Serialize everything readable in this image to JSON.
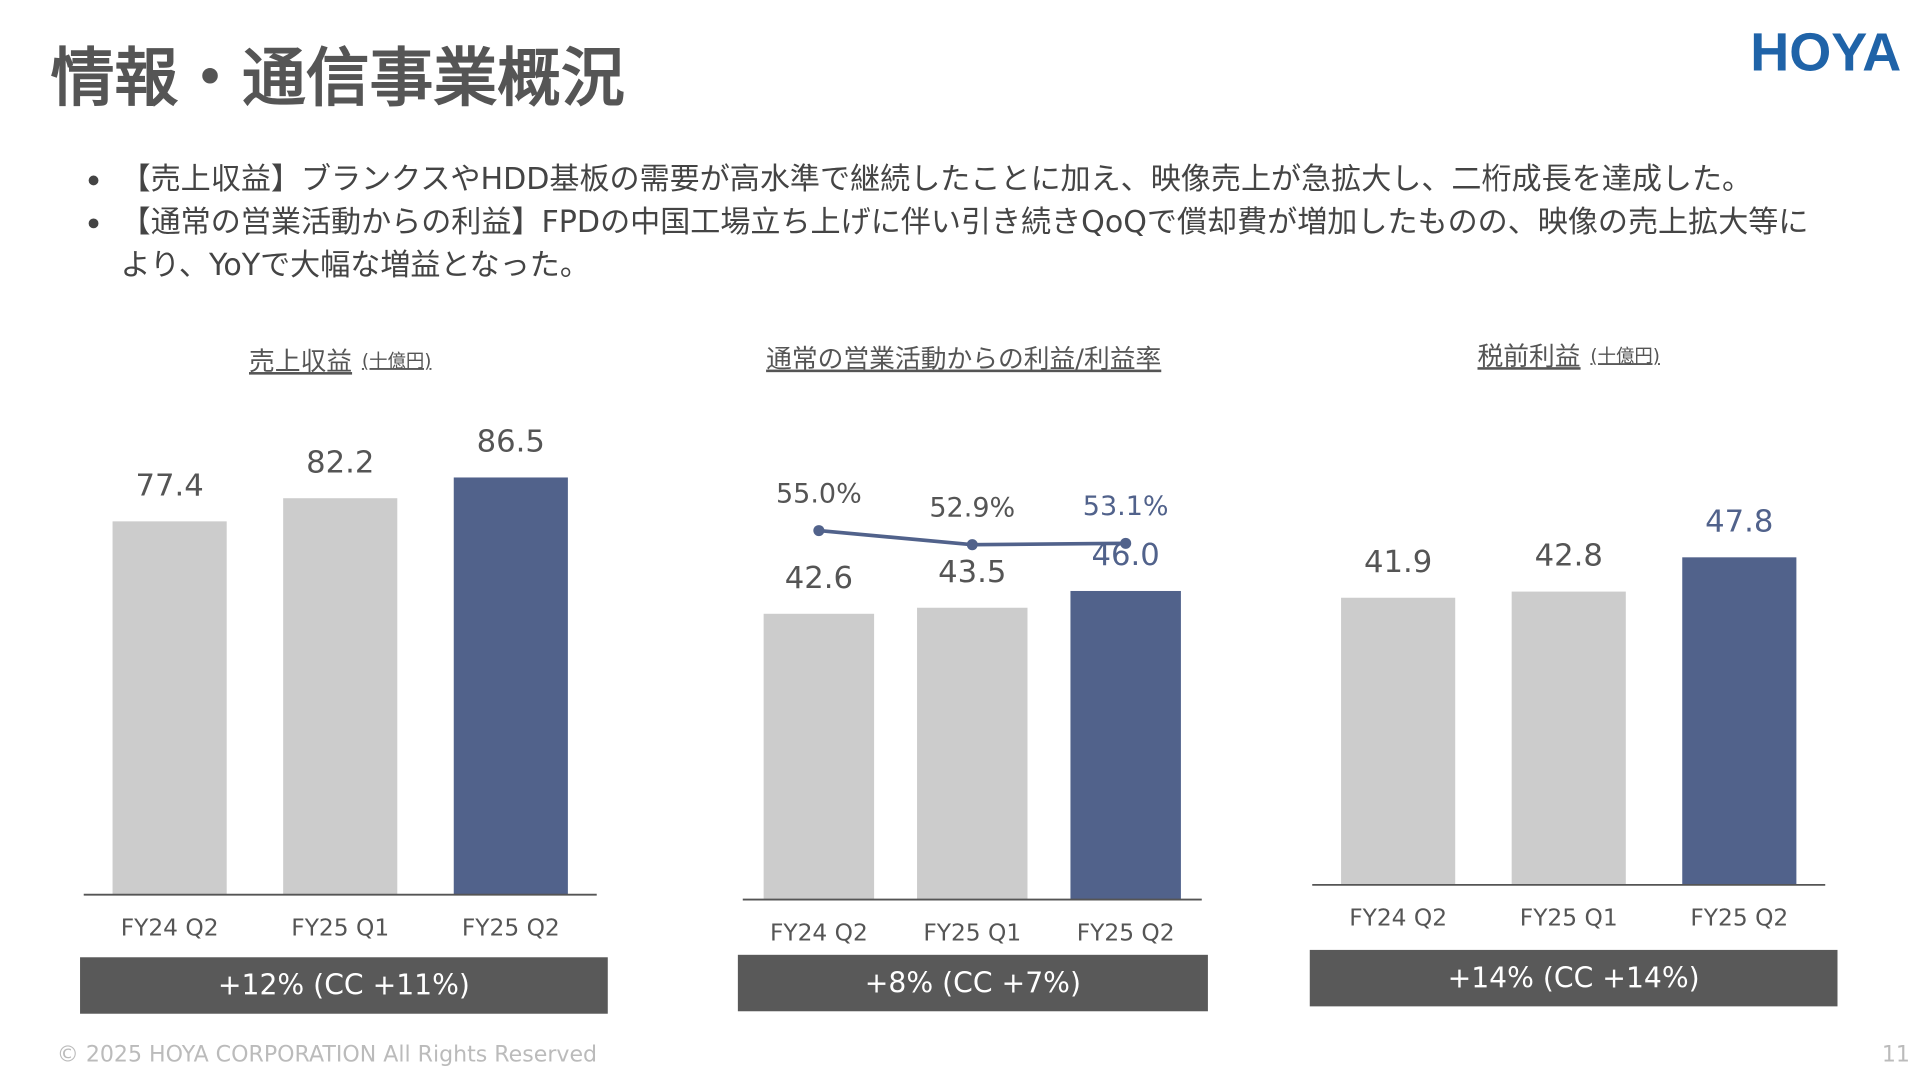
{
  "title": "情報・通信事業概況",
  "logo": "HOYA",
  "bullets": [
    "【売上収益】ブランクスやHDD基板の需要が高水準で継続したことに加え、映像売上が急拡大し、二桁成長を達成した。",
    "【通常の営業活動からの利益】FPDの中国工場立ち上げに伴い引き続きQoQで償却費が増加したものの、映像の売上拡大等により、YoYで大幅な増益となった。"
  ],
  "footer": "© 2025 HOYA CORPORATION All Rights Reserved",
  "page_number": "11",
  "chart_data": [
    {
      "type": "bar",
      "title": "売上収益",
      "unit": "(十億円)",
      "categories": [
        "FY24 Q2",
        "FY25 Q1",
        "FY25 Q2"
      ],
      "series": [
        {
          "colors": [
            "#cccccc",
            "#cccccc",
            "#51628b"
          ],
          "values": [
            77.4,
            82.2,
            86.5
          ]
        }
      ],
      "ylim": [
        0,
        100
      ],
      "growth": "+12% (CC +11%)"
    },
    {
      "type": "bar",
      "title": "通常の営業活動からの利益/利益率",
      "categories": [
        "FY24 Q2",
        "FY25 Q1",
        "FY25 Q2"
      ],
      "series": [
        {
          "colors": [
            "#cccccc",
            "#cccccc",
            "#51628b"
          ],
          "values": [
            42.6,
            43.5,
            46.0
          ],
          "value_labels": [
            "42.6",
            "43.5",
            "46.0"
          ]
        },
        {
          "type": "line",
          "axis": "y2",
          "color": "#51628b",
          "values": [
            55.0,
            52.9,
            53.1
          ],
          "value_labels": [
            "55.0%",
            "52.9%",
            "53.1%"
          ]
        }
      ],
      "ylim": [
        0,
        60
      ],
      "y2lim": [
        0,
        60
      ],
      "growth": "+8% (CC +7%)"
    },
    {
      "type": "bar",
      "title": "税前利益",
      "unit": "(十億円)",
      "categories": [
        "FY24 Q2",
        "FY25 Q1",
        "FY25 Q2"
      ],
      "series": [
        {
          "colors": [
            "#cccccc",
            "#cccccc",
            "#51628b"
          ],
          "values": [
            41.9,
            42.8,
            47.8
          ]
        }
      ],
      "ylim": [
        0,
        60
      ],
      "growth": "+14% (CC +14%)"
    }
  ]
}
